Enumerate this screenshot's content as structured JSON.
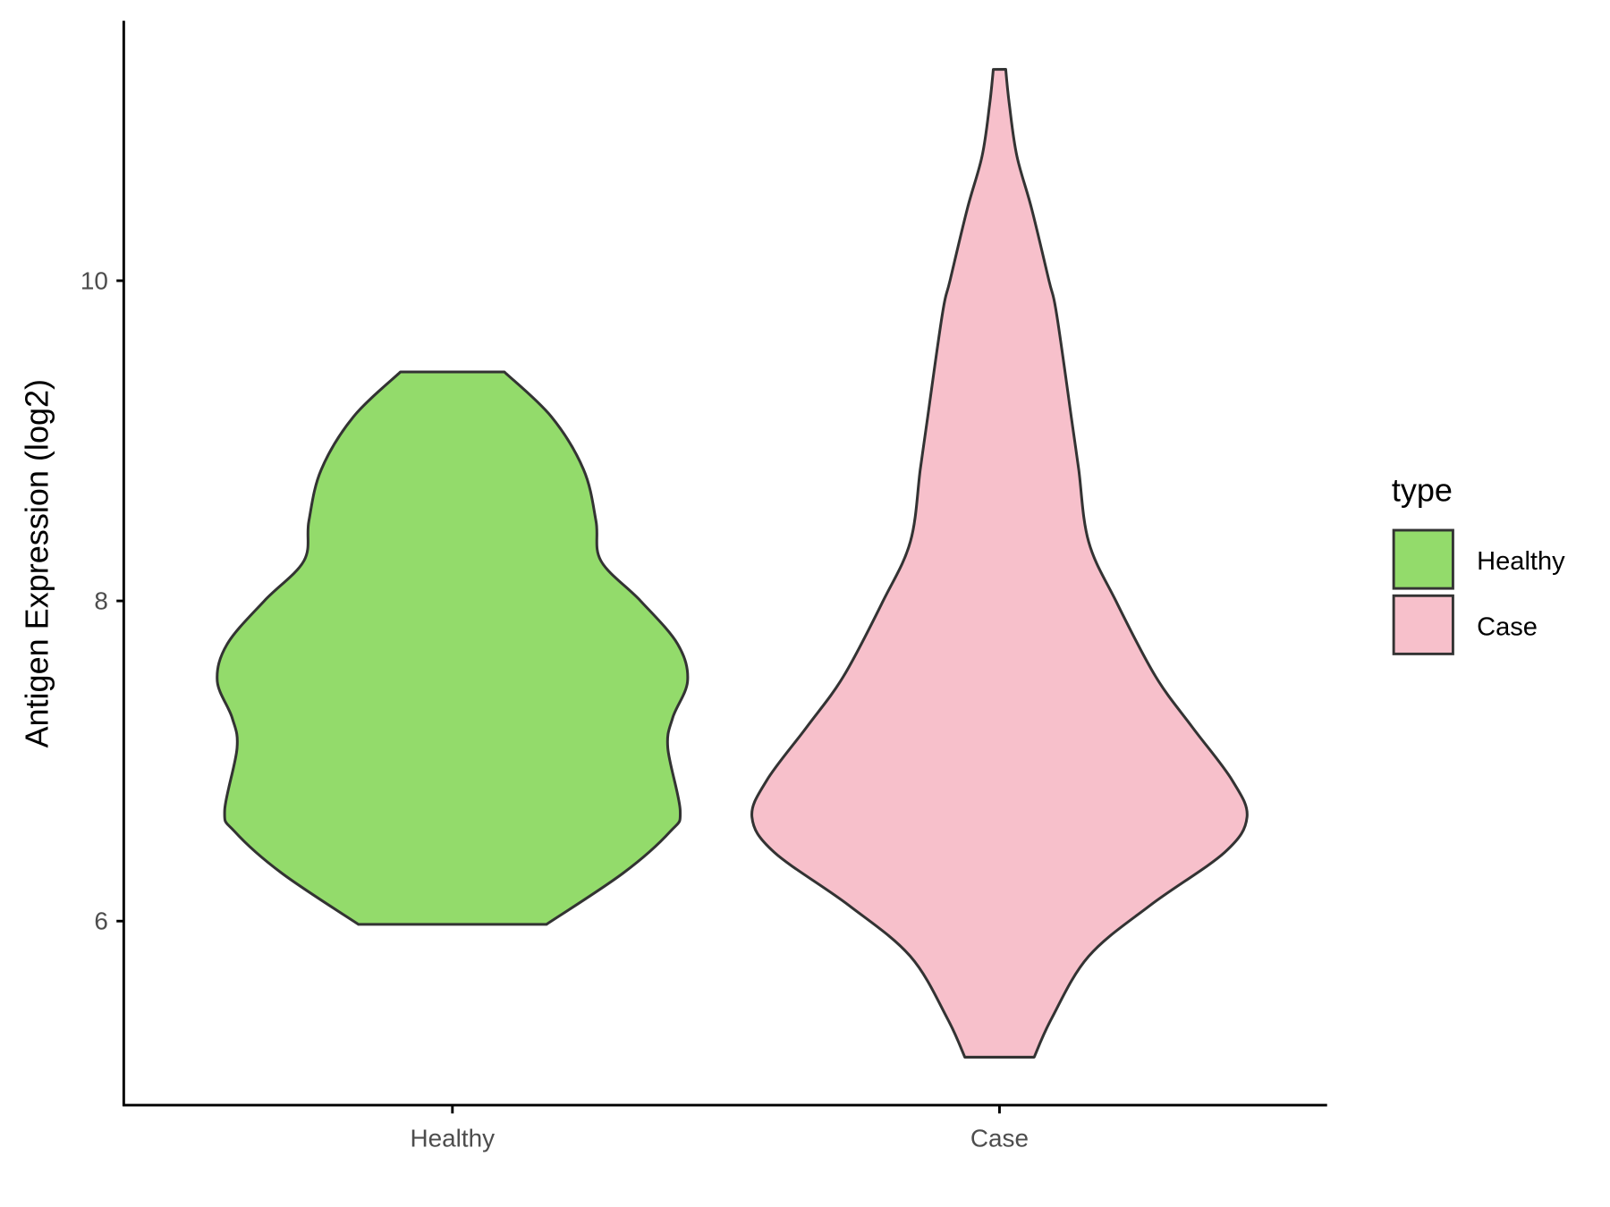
{
  "chart_data": {
    "type": "violin",
    "title": "",
    "xlabel": "",
    "ylabel": "Antigen Expression (log2)",
    "ylim": [
      4.88,
      11.65
    ],
    "yticks": [
      6,
      8,
      10
    ],
    "categories": [
      "Healthy",
      "Case"
    ],
    "grid": false,
    "legend": {
      "title": "type",
      "placement": "right",
      "entries": [
        "Healthy",
        "Case"
      ]
    },
    "series": [
      {
        "name": "Healthy",
        "color": "#93DB6B",
        "min": 5.98,
        "max": 9.43,
        "profile": [
          [
            5.98,
            0.38
          ],
          [
            6.3,
            0.69
          ],
          [
            6.56,
            0.88
          ],
          [
            6.69,
            0.92
          ],
          [
            7.08,
            0.87
          ],
          [
            7.27,
            0.89
          ],
          [
            7.5,
            0.95
          ],
          [
            7.73,
            0.91
          ],
          [
            8.0,
            0.76
          ],
          [
            8.25,
            0.6
          ],
          [
            8.5,
            0.58
          ],
          [
            8.82,
            0.53
          ],
          [
            9.15,
            0.4
          ],
          [
            9.43,
            0.21
          ]
        ]
      },
      {
        "name": "Case",
        "color": "#F7C0CB",
        "min": 5.15,
        "max": 11.32,
        "profile": [
          [
            5.15,
            0.14
          ],
          [
            5.39,
            0.21
          ],
          [
            5.78,
            0.36
          ],
          [
            6.1,
            0.61
          ],
          [
            6.43,
            0.91
          ],
          [
            6.65,
            1.0
          ],
          [
            6.88,
            0.94
          ],
          [
            7.21,
            0.78
          ],
          [
            7.53,
            0.63
          ],
          [
            8.0,
            0.47
          ],
          [
            8.37,
            0.36
          ],
          [
            8.82,
            0.32
          ],
          [
            9.15,
            0.29
          ],
          [
            9.8,
            0.23
          ],
          [
            10.0,
            0.2
          ],
          [
            10.45,
            0.13
          ],
          [
            10.78,
            0.07
          ],
          [
            11.1,
            0.04
          ],
          [
            11.32,
            0.025
          ]
        ]
      }
    ]
  }
}
